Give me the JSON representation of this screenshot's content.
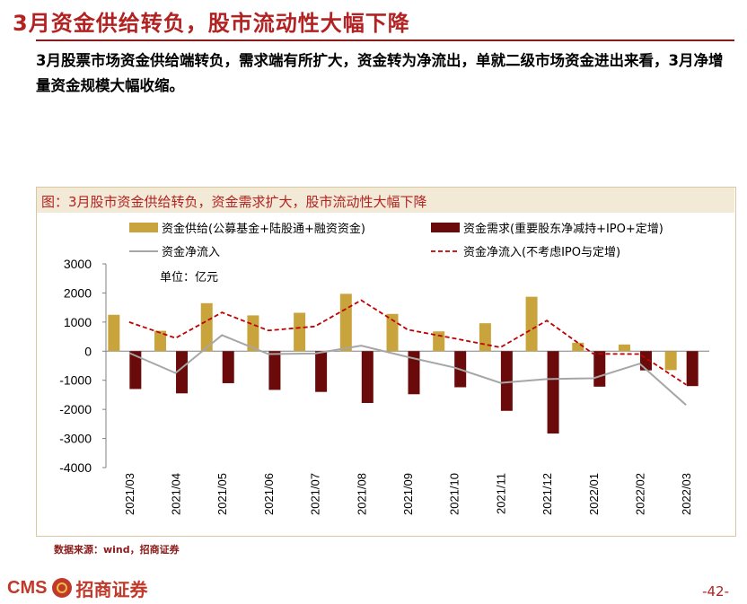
{
  "page": {
    "title": "3月资金供给转负，股市流动性大幅下降",
    "subtitle": "3月股票市场资金供给端转负，需求端有所扩大，资金转为净流出，单就二级市场资金进出来看，3月净增量资金规模大幅收缩。",
    "source": "数据来源：wind，招商证券",
    "page_number": "-42-",
    "logo_text": "CMS",
    "logo_name": "招商证券"
  },
  "colors": {
    "title": "#b22222",
    "supply_bar": "#c9a43c",
    "demand_bar": "#6b0a0a",
    "net_line": "#a6a6a6",
    "net_ex_line": "#c00000"
  },
  "chart_data": {
    "type": "bar",
    "title": "图：3月股市资金供给转负，资金需求扩大，股市流动性大幅下降",
    "unit_label": "单位：亿元",
    "categories": [
      "2021/03",
      "2021/04",
      "2021/05",
      "2021/06",
      "2021/07",
      "2021/08",
      "2021/09",
      "2021/10",
      "2021/11",
      "2021/12",
      "2022/01",
      "2022/02",
      "2022/03"
    ],
    "ylim": [
      -4000,
      3000
    ],
    "yticks": [
      "3000",
      "2000",
      "1000",
      "0",
      "-1000",
      "-2000",
      "-3000",
      "-4000"
    ],
    "series": [
      {
        "name": "资金供给(公募基金+陆股通+融资资金)",
        "kind": "bar",
        "values": [
          1250,
          700,
          1650,
          1230,
          1320,
          1970,
          1280,
          680,
          960,
          1870,
          290,
          230,
          -650
        ]
      },
      {
        "name": "资金需求(重要股东净减持+IPO+定增)",
        "kind": "bar",
        "values": [
          -1300,
          -1450,
          -1100,
          -1330,
          -1400,
          -1780,
          -1480,
          -1240,
          -2050,
          -2830,
          -1220,
          -660,
          -1200
        ]
      },
      {
        "name": "资金净流入",
        "kind": "line",
        "values": [
          -60,
          -750,
          550,
          -100,
          -80,
          190,
          -200,
          -560,
          -1090,
          -960,
          -930,
          -430,
          -1850
        ]
      },
      {
        "name": "资金净流入(不考虑IPO与定增)",
        "kind": "line-dashed",
        "values": [
          1000,
          450,
          1330,
          710,
          850,
          1750,
          740,
          440,
          130,
          1050,
          -90,
          -100,
          -1150
        ]
      }
    ]
  }
}
